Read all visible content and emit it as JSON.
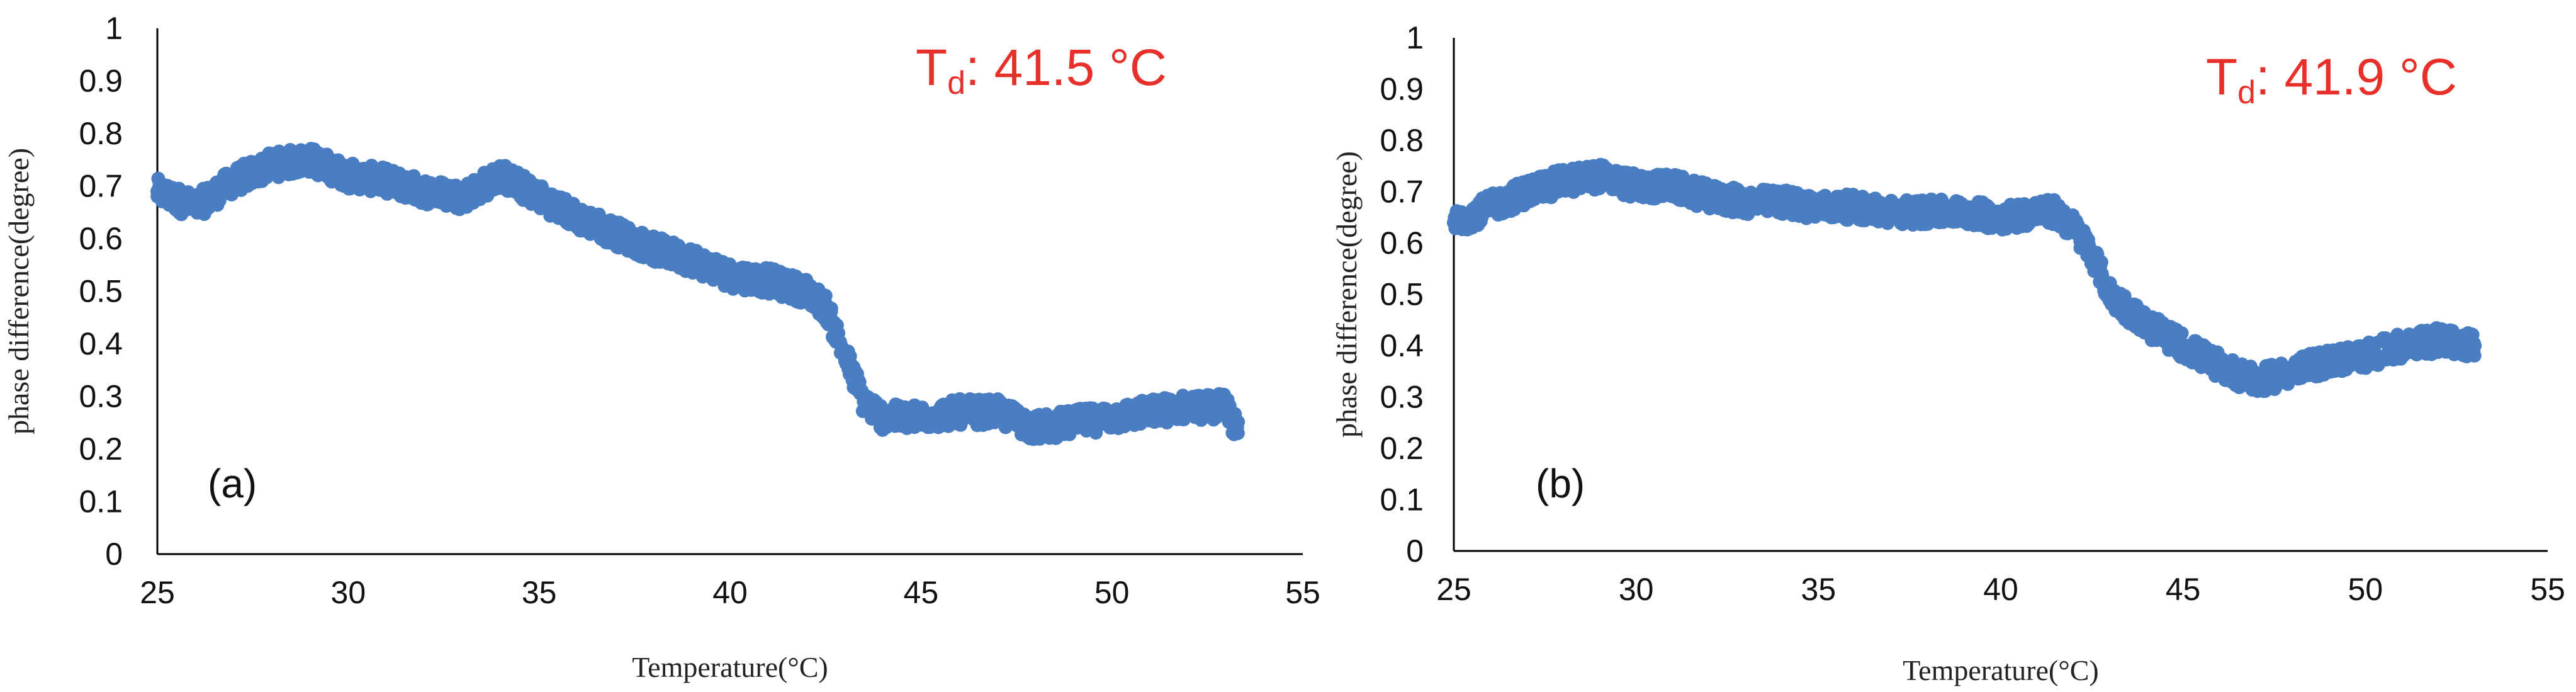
{
  "chart_data": [
    {
      "type": "scatter",
      "panel_label": "(a)",
      "annotation": {
        "text": "T",
        "subscript": "d",
        "value": ": 41.5 °C",
        "color": "#e8302a"
      },
      "xlabel": "Temperature(°C)",
      "ylabel": "phase difference(degree)",
      "xlim": [
        25,
        55
      ],
      "ylim": [
        0,
        1
      ],
      "x_ticks": [
        "25",
        "30",
        "35",
        "40",
        "45",
        "50",
        "55"
      ],
      "y_ticks": [
        "0",
        "0.1",
        "0.2",
        "0.3",
        "0.4",
        "0.5",
        "0.6",
        "0.7",
        "0.8",
        "0.9",
        "1"
      ],
      "grid": false,
      "marker_color": "#4a7ec2",
      "series": [
        {
          "x": [
            25,
            26,
            27,
            28,
            29,
            30,
            31,
            32,
            33,
            34,
            35,
            36,
            37,
            38,
            39,
            40,
            41,
            42,
            42.5,
            43,
            43.5,
            44,
            45,
            46,
            47,
            48,
            49,
            50,
            51,
            52,
            53,
            53.3
          ],
          "y": [
            0.69,
            0.66,
            0.71,
            0.74,
            0.75,
            0.72,
            0.71,
            0.69,
            0.68,
            0.72,
            0.68,
            0.64,
            0.61,
            0.58,
            0.56,
            0.53,
            0.52,
            0.5,
            0.47,
            0.38,
            0.29,
            0.26,
            0.26,
            0.27,
            0.27,
            0.24,
            0.25,
            0.26,
            0.27,
            0.28,
            0.28,
            0.23
          ]
        }
      ]
    },
    {
      "type": "scatter",
      "panel_label": "(b)",
      "annotation": {
        "text": "T",
        "subscript": "d",
        "value": ": 41.9 °C",
        "color": "#e8302a"
      },
      "xlabel": "Temperature(°C)",
      "ylabel": "phase difference(degree)",
      "xlim": [
        25,
        55
      ],
      "ylim": [
        0,
        1
      ],
      "x_ticks": [
        "25",
        "30",
        "35",
        "40",
        "45",
        "50",
        "55"
      ],
      "y_ticks": [
        "0",
        "0.1",
        "0.2",
        "0.3",
        "0.4",
        "0.5",
        "0.6",
        "0.7",
        "0.8",
        "0.9",
        "1"
      ],
      "grid": false,
      "marker_color": "#4a7ec2",
      "series": [
        {
          "x": [
            25,
            26,
            27,
            28,
            29,
            30,
            31,
            32,
            33,
            34,
            35,
            36,
            37,
            38,
            39,
            40,
            41,
            41.5,
            42,
            42.5,
            43,
            43.5,
            44,
            45,
            46,
            47,
            48,
            49,
            50,
            51,
            52,
            53
          ],
          "y": [
            0.64,
            0.67,
            0.7,
            0.72,
            0.73,
            0.71,
            0.71,
            0.69,
            0.68,
            0.68,
            0.67,
            0.67,
            0.66,
            0.66,
            0.66,
            0.65,
            0.66,
            0.66,
            0.63,
            0.58,
            0.5,
            0.47,
            0.44,
            0.4,
            0.36,
            0.33,
            0.35,
            0.37,
            0.38,
            0.4,
            0.41,
            0.4
          ]
        }
      ]
    }
  ]
}
